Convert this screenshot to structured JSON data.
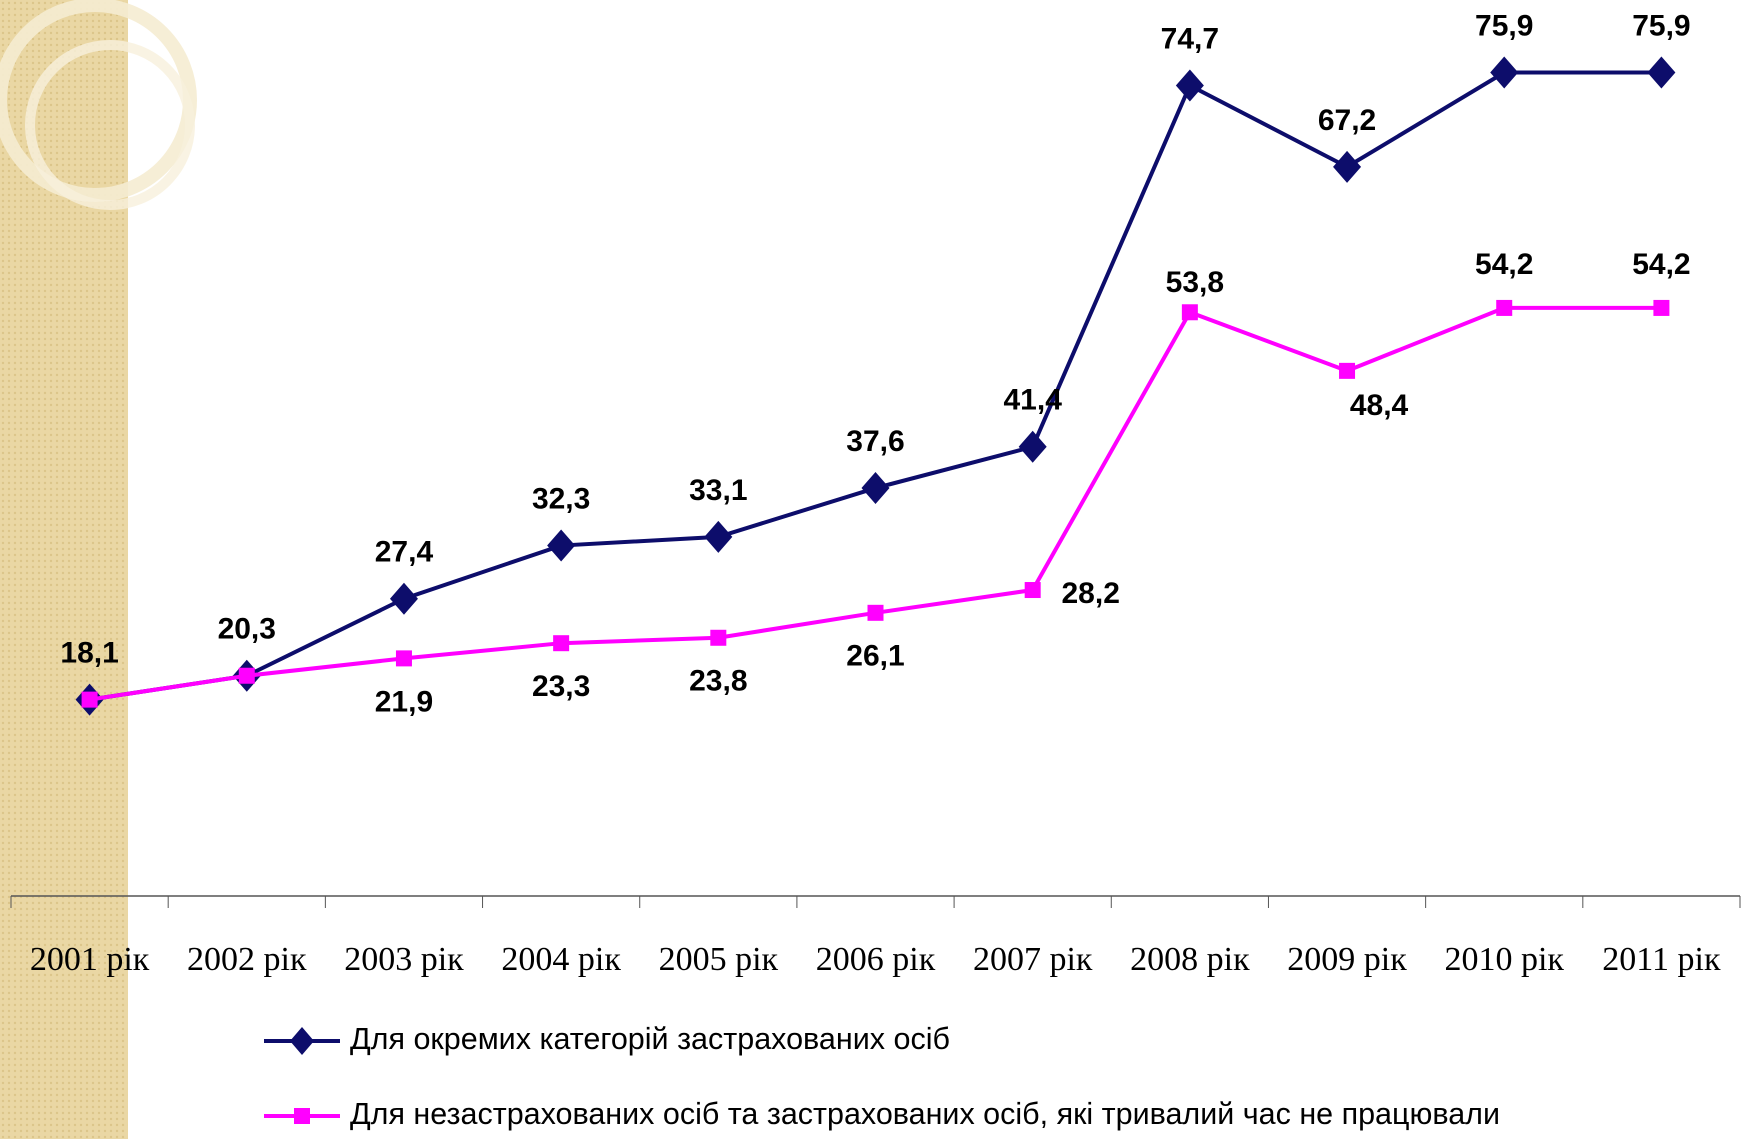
{
  "chart_data": {
    "type": "line",
    "categories": [
      "2001 рік",
      "2002 рік",
      "2003 рік",
      "2004 рік",
      "2005 рік",
      "2006 рік",
      "2007 рік",
      "2008 рік",
      "2009 рік",
      "2010 рік",
      "2011 рік"
    ],
    "series": [
      {
        "name": "Для окремих категорій застрахованих осіб",
        "color": "#0d0d6b",
        "marker": "diamond",
        "values": [
          18.1,
          20.3,
          27.4,
          32.3,
          33.1,
          37.6,
          41.4,
          74.7,
          67.2,
          75.9,
          75.9
        ],
        "value_labels": [
          "18,1",
          "20,3",
          "27,4",
          "32,3",
          "33,1",
          "37,6",
          "41,4",
          "74,7",
          "67,2",
          "75,9",
          "75,9"
        ]
      },
      {
        "name": "Для незастрахованих осіб та застрахованих осіб, які тривалий час не працювали",
        "color": "#ff00ff",
        "marker": "square",
        "values": [
          18.1,
          20.3,
          21.9,
          23.3,
          23.8,
          26.1,
          28.2,
          53.8,
          48.4,
          54.2,
          54.2
        ],
        "value_labels": [
          null,
          null,
          "21,9",
          "23,3",
          "23,8",
          "26,1",
          "28,2",
          "53,8",
          "48,4",
          "54,2",
          "54,2"
        ]
      }
    ],
    "ylim": [
      0,
      80
    ]
  }
}
